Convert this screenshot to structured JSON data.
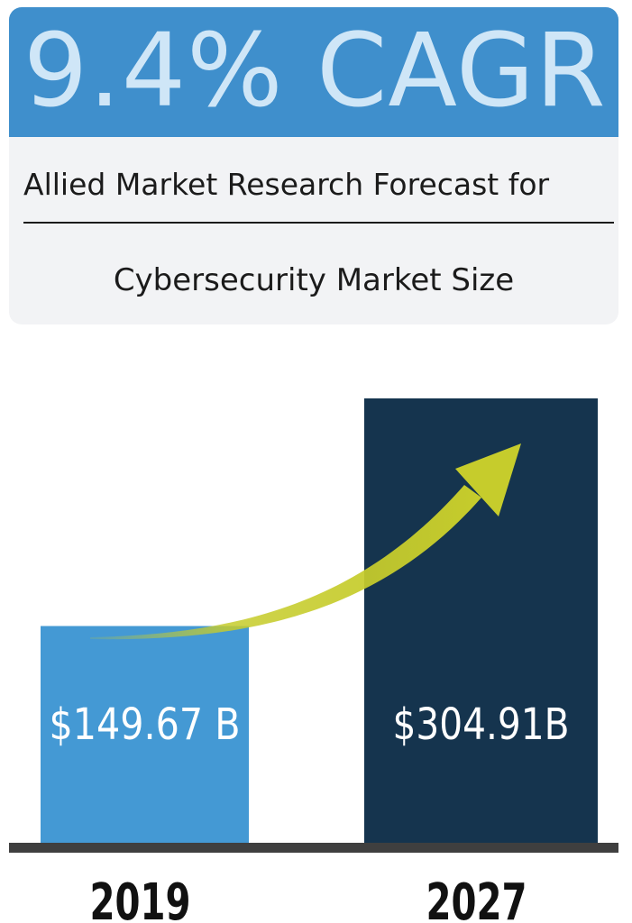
{
  "card": {
    "headline": "9.4% CAGR",
    "subtitle": "Allied Market Research Forecast for",
    "topic": "Cybersecurity Market Size"
  },
  "colors": {
    "header_blue": "#3f8fcc",
    "headline_text": "#cfe6f7",
    "bar_2019": "#4499d4",
    "bar_2027": "#15344e",
    "arrow": "#c6cc2c",
    "baseline": "#3f3f3f"
  },
  "chart_data": {
    "type": "bar",
    "categories": [
      "2019",
      "2027"
    ],
    "values": [
      149.67,
      304.91
    ],
    "value_labels": [
      "$149.67 B",
      "$304.91B"
    ],
    "ylim": [
      0,
      304.91
    ],
    "grid": false,
    "annotation": "upward growth arrow from 2019 bar to 2027 bar"
  }
}
